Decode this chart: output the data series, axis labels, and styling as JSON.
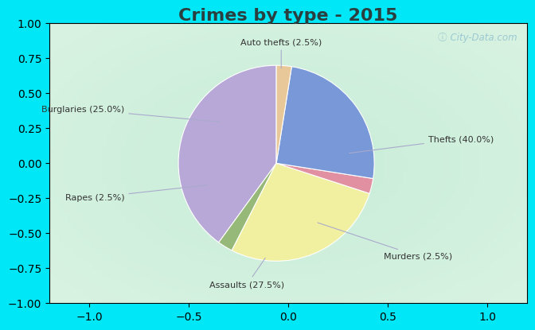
{
  "title": "Crimes by type - 2015",
  "title_fontsize": 16,
  "title_fontweight": "bold",
  "slices": [
    {
      "label": "Thefts (40.0%)",
      "value": 40.0,
      "color": "#b8a8d8"
    },
    {
      "label": "Murders (2.5%)",
      "value": 2.5,
      "color": "#96b878"
    },
    {
      "label": "Assaults (27.5%)",
      "value": 27.5,
      "color": "#f0f0a0"
    },
    {
      "label": "Rapes (2.5%)",
      "value": 2.5,
      "color": "#e090a0"
    },
    {
      "label": "Burglaries (25.0%)",
      "value": 25.0,
      "color": "#7898d8"
    },
    {
      "label": "Auto thefts (2.5%)",
      "value": 2.5,
      "color": "#e8c898"
    }
  ],
  "bg_cyan": "#00e8f8",
  "bg_inner": "#c8e8d8",
  "startangle": 90,
  "watermark": "ⓘ City-Data.com",
  "title_color": "#2a4040",
  "label_color": "#333333",
  "line_color": "#aaaacc"
}
